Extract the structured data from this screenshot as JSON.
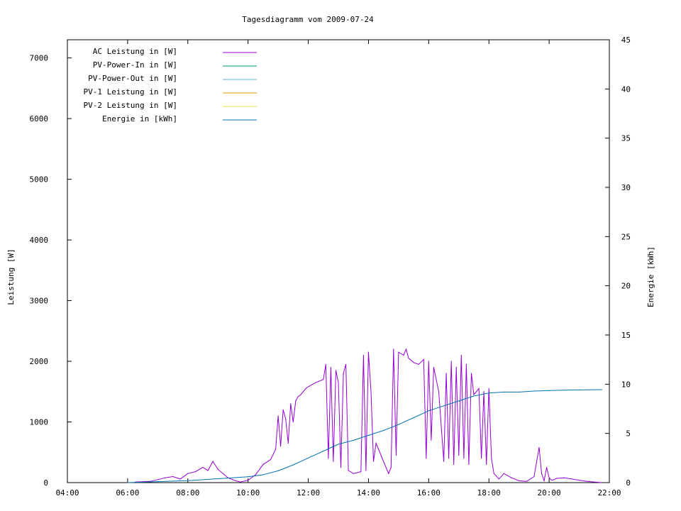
{
  "chart_data": {
    "type": "line",
    "title": "Tagesdiagramm vom 2009-07-24",
    "ylabel": "Leistung [W]",
    "y2label": "Energie [kWh]",
    "xlabel": "",
    "x_ticks": [
      "04:00",
      "06:00",
      "08:00",
      "10:00",
      "12:00",
      "14:00",
      "16:00",
      "18:00",
      "20:00",
      "22:00"
    ],
    "xlim": [
      "04:00",
      "22:00"
    ],
    "y_ticks": [
      0,
      1000,
      2000,
      3000,
      4000,
      5000,
      6000,
      7000
    ],
    "ylim": [
      0,
      7300
    ],
    "y2_ticks": [
      0,
      5,
      10,
      15,
      20,
      25,
      30,
      35,
      40,
      45
    ],
    "y2lim": [
      0,
      45
    ],
    "grid": false,
    "legend_position": "top-left",
    "legend": [
      {
        "label": "AC Leistung in [W]",
        "color": "#9400d3"
      },
      {
        "label": "PV-Power-In in [W]",
        "color": "#009e73"
      },
      {
        "label": "PV-Power-Out in [W]",
        "color": "#56b4e9"
      },
      {
        "label": "PV-1 Leistung in [W]",
        "color": "#e69f00"
      },
      {
        "label": "PV-2 Leistung in [W]",
        "color": "#f0e442"
      },
      {
        "label": "Energie in [kWh]",
        "color": "#0072b2"
      }
    ],
    "series": [
      {
        "name": "AC Leistung in [W]",
        "axis": "y",
        "color": "#9400d3",
        "x": [
          "06:15",
          "06:45",
          "07:15",
          "07:30",
          "07:45",
          "08:00",
          "08:15",
          "08:30",
          "08:40",
          "08:50",
          "09:00",
          "09:10",
          "09:20",
          "09:35",
          "09:45",
          "10:00",
          "10:15",
          "10:30",
          "10:45",
          "10:55",
          "11:00",
          "11:05",
          "11:10",
          "11:15",
          "11:20",
          "11:25",
          "11:30",
          "11:35",
          "11:40",
          "11:45",
          "11:50",
          "11:55",
          "12:00",
          "12:15",
          "12:30",
          "12:35",
          "12:40",
          "12:45",
          "12:50",
          "12:55",
          "13:00",
          "13:05",
          "13:10",
          "13:15",
          "13:20",
          "13:30",
          "13:45",
          "13:50",
          "13:55",
          "14:00",
          "14:05",
          "14:10",
          "14:15",
          "14:25",
          "14:40",
          "14:45",
          "14:50",
          "14:55",
          "15:00",
          "15:10",
          "15:15",
          "15:20",
          "15:30",
          "15:40",
          "15:50",
          "15:55",
          "16:00",
          "16:05",
          "16:10",
          "16:20",
          "16:30",
          "16:35",
          "16:40",
          "16:45",
          "16:50",
          "16:55",
          "17:00",
          "17:05",
          "17:10",
          "17:15",
          "17:20",
          "17:25",
          "17:30",
          "17:40",
          "17:45",
          "17:50",
          "17:55",
          "18:00",
          "18:05",
          "18:10",
          "18:20",
          "18:30",
          "18:45",
          "19:00",
          "19:15",
          "19:30",
          "19:40",
          "19:45",
          "19:50",
          "19:55",
          "20:00",
          "20:05",
          "20:10",
          "20:15",
          "20:30",
          "20:45",
          "21:00",
          "21:15",
          "21:30",
          "21:45"
        ],
        "values": [
          10,
          20,
          80,
          100,
          60,
          150,
          180,
          250,
          200,
          350,
          220,
          150,
          80,
          30,
          10,
          40,
          130,
          300,
          380,
          550,
          1100,
          600,
          1200,
          1050,
          650,
          1300,
          1000,
          1350,
          1420,
          1450,
          1500,
          1550,
          1580,
          1650,
          1700,
          1950,
          400,
          1900,
          350,
          1850,
          1650,
          250,
          1800,
          1950,
          200,
          150,
          180,
          2100,
          200,
          2150,
          1500,
          350,
          650,
          450,
          150,
          250,
          2200,
          450,
          2150,
          2100,
          2200,
          2050,
          1980,
          1950,
          2030,
          400,
          2000,
          700,
          1900,
          1500,
          350,
          1800,
          400,
          2000,
          300,
          1900,
          450,
          2100,
          400,
          1950,
          300,
          1800,
          1450,
          1550,
          400,
          1500,
          300,
          1550,
          400,
          150,
          60,
          150,
          80,
          30,
          20,
          100,
          580,
          150,
          30,
          250,
          80,
          40,
          50,
          70,
          80,
          60,
          40,
          20,
          10,
          0
        ]
      },
      {
        "name": "Energie in [kWh]",
        "axis": "y2",
        "color": "#0072b2",
        "x": [
          "06:00",
          "07:00",
          "08:00",
          "09:00",
          "10:00",
          "10:30",
          "11:00",
          "11:30",
          "12:00",
          "12:30",
          "13:00",
          "13:30",
          "14:00",
          "14:30",
          "15:00",
          "15:30",
          "16:00",
          "16:30",
          "17:00",
          "17:30",
          "18:00",
          "18:30",
          "19:00",
          "19:30",
          "20:00",
          "20:30",
          "21:00",
          "21:45"
        ],
        "values": [
          0.0,
          0.1,
          0.2,
          0.4,
          0.6,
          0.8,
          1.2,
          1.8,
          2.5,
          3.2,
          3.9,
          4.3,
          4.8,
          5.3,
          5.9,
          6.6,
          7.3,
          7.8,
          8.3,
          8.8,
          9.1,
          9.2,
          9.2,
          9.3,
          9.35,
          9.4,
          9.42,
          9.45
        ]
      }
    ]
  }
}
